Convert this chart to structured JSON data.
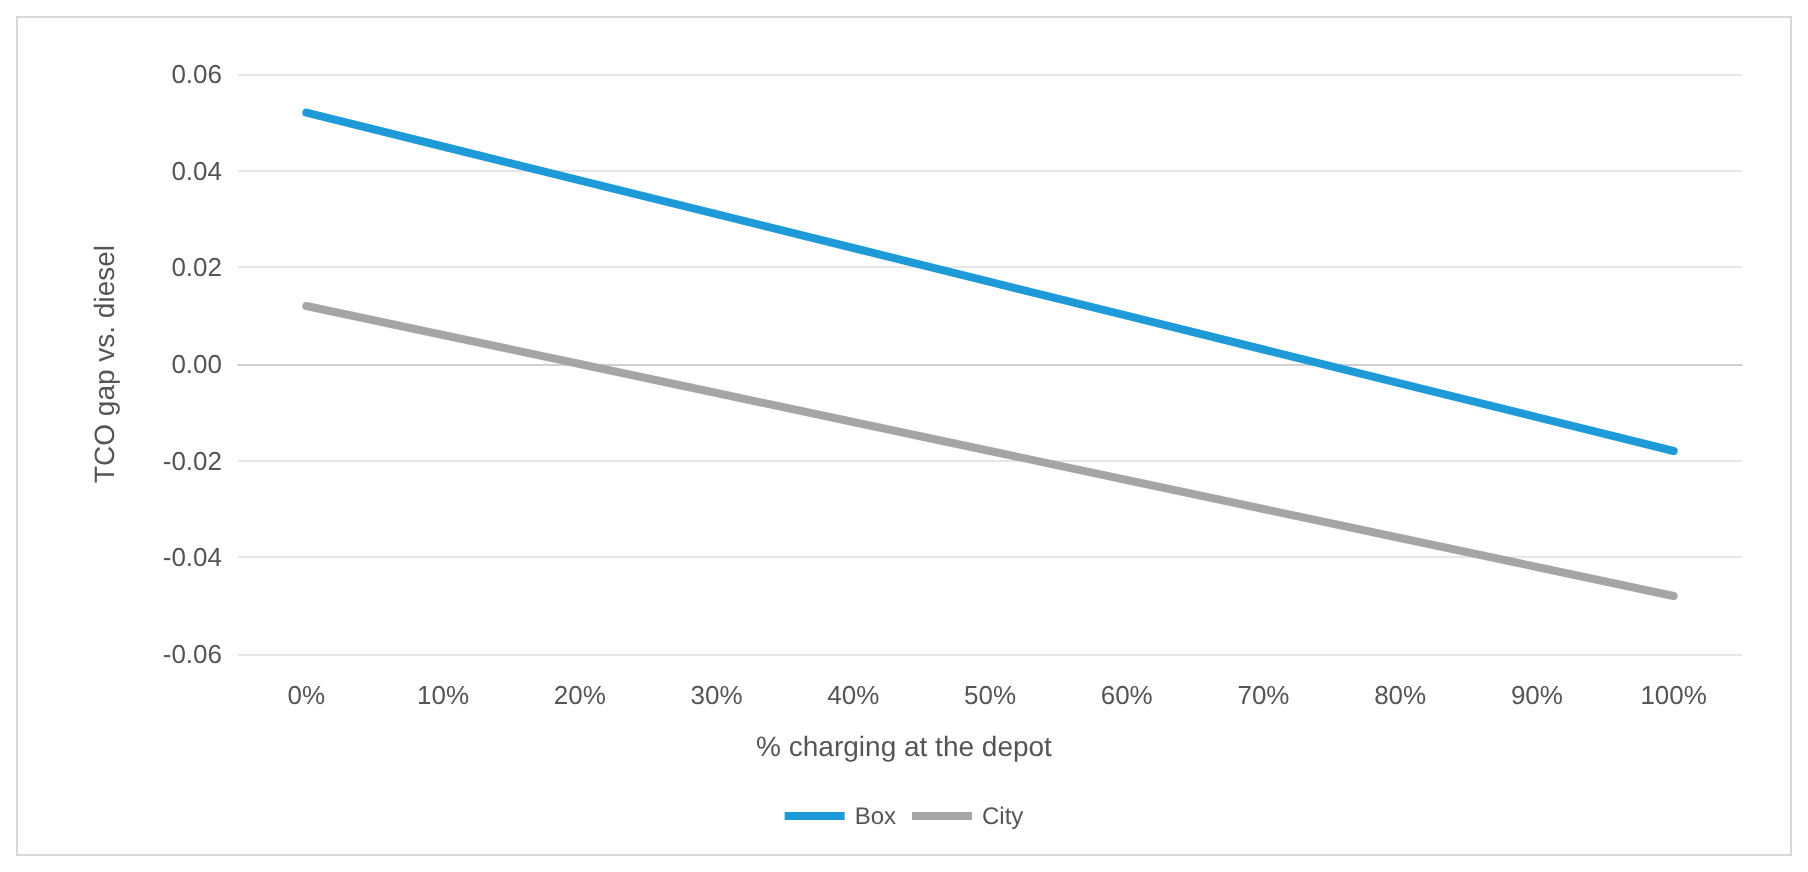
{
  "chart_data": {
    "type": "line",
    "xlabel": "% charging at the depot",
    "ylabel": "TCO gap vs. diesel",
    "categories": [
      "0%",
      "10%",
      "20%",
      "30%",
      "40%",
      "50%",
      "60%",
      "70%",
      "80%",
      "90%",
      "100%"
    ],
    "series": [
      {
        "name": "Box",
        "color": "#1f9ad9",
        "values": [
          0.052,
          0.045,
          0.038,
          0.031,
          0.024,
          0.017,
          0.01,
          0.003,
          -0.004,
          -0.011,
          -0.018
        ]
      },
      {
        "name": "City",
        "color": "#a5a5a5",
        "values": [
          0.012,
          0.006,
          0.0,
          -0.006,
          -0.012,
          -0.018,
          -0.024,
          -0.03,
          -0.036,
          -0.042,
          -0.048
        ]
      }
    ],
    "ylim": [
      -0.06,
      0.06
    ],
    "yticks": [
      {
        "value": -0.06,
        "label": "-0.06"
      },
      {
        "value": -0.04,
        "label": "-0.04"
      },
      {
        "value": -0.02,
        "label": "-0.02"
      },
      {
        "value": 0,
        "label": "0.00"
      },
      {
        "value": 0.02,
        "label": "0.02"
      },
      {
        "value": 0.04,
        "label": "0.04"
      },
      {
        "value": 0.06,
        "label": "0.06"
      }
    ],
    "grid": "y",
    "legend": "bottom",
    "marker": "none",
    "line_style": "solid"
  }
}
